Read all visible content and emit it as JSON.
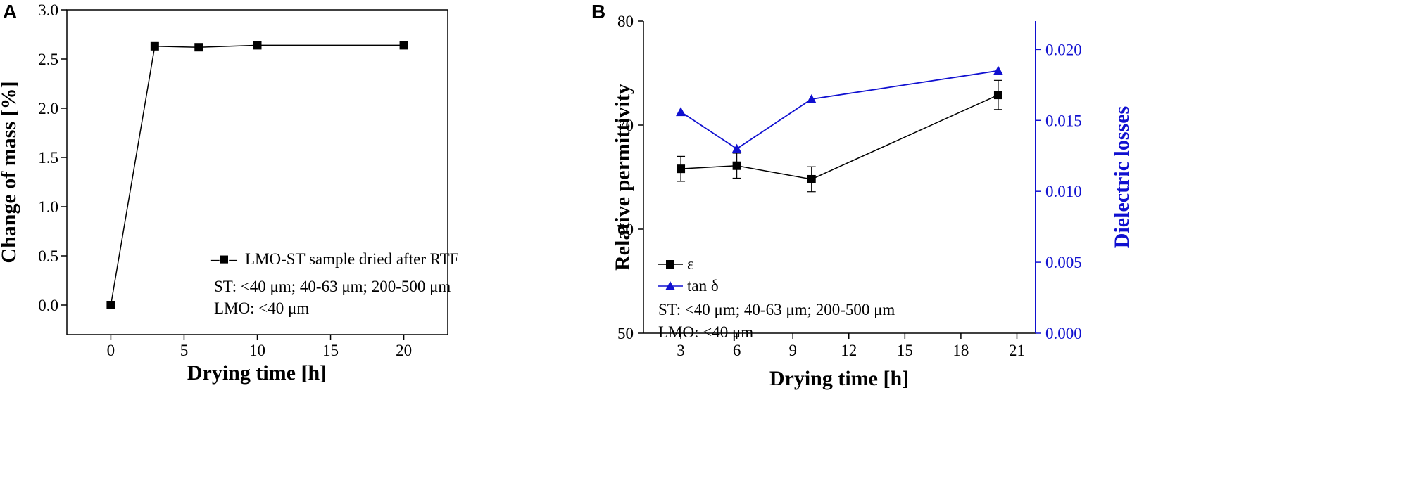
{
  "colors": {
    "black_series": "#000000",
    "blue_series": "#1010d0"
  },
  "chart_data": [
    {
      "panel": "A",
      "type": "line",
      "title": "",
      "xlabel": "Drying time [h]",
      "ylabel": "Change of mass [%]",
      "xlim": [
        -3,
        23
      ],
      "ylim": [
        -0.3,
        3.0
      ],
      "xticks": [
        0,
        5,
        10,
        15,
        20
      ],
      "yticks": [
        0.0,
        0.5,
        1.0,
        1.5,
        2.0,
        2.5,
        3.0
      ],
      "ytick_labels": [
        "0.0",
        "0.5",
        "1.0",
        "1.5",
        "2.0",
        "2.5",
        "3.0"
      ],
      "series": [
        {
          "name": "LMO-ST sample dried after RTF",
          "marker": "square",
          "color": "#000000",
          "x": [
            0,
            3,
            6,
            10,
            20
          ],
          "y": [
            0.0,
            2.63,
            2.62,
            2.64,
            2.64
          ]
        }
      ],
      "legend_marker": "–■–",
      "annotations": [
        "ST: <40 μm; 40-63 μm; 200-500 μm",
        "LMO: <40 μm"
      ]
    },
    {
      "panel": "B",
      "type": "line",
      "title": "",
      "xlabel": "Drying time [h]",
      "ylabel": "Relative permittivity",
      "y2label": "Dielectric losses",
      "xlim": [
        1,
        22
      ],
      "ylim": [
        50,
        80
      ],
      "y2lim": [
        0.0,
        0.022
      ],
      "xticks": [
        3,
        6,
        9,
        12,
        15,
        18,
        21
      ],
      "yticks": [
        50,
        60,
        70,
        80
      ],
      "y2ticks": [
        0.0,
        0.005,
        0.01,
        0.015,
        0.02
      ],
      "y2tick_labels": [
        "0.000",
        "0.005",
        "0.010",
        "0.015",
        "0.020"
      ],
      "series": [
        {
          "name": "ε",
          "axis": "left",
          "marker": "square",
          "color": "#000000",
          "x": [
            3,
            6,
            10,
            20
          ],
          "y": [
            65.8,
            66.1,
            64.8,
            72.9
          ],
          "yerr": [
            1.2,
            1.2,
            1.2,
            1.4
          ]
        },
        {
          "name": "tan δ",
          "axis": "right",
          "marker": "triangle",
          "color": "#1010d0",
          "x": [
            3,
            6,
            10,
            20
          ],
          "y": [
            0.0156,
            0.013,
            0.0165,
            0.0185
          ]
        }
      ],
      "annotations": [
        "ST: <40 μm; 40-63 μm; 200-500 μm",
        "LMO: <40 μm"
      ]
    }
  ]
}
